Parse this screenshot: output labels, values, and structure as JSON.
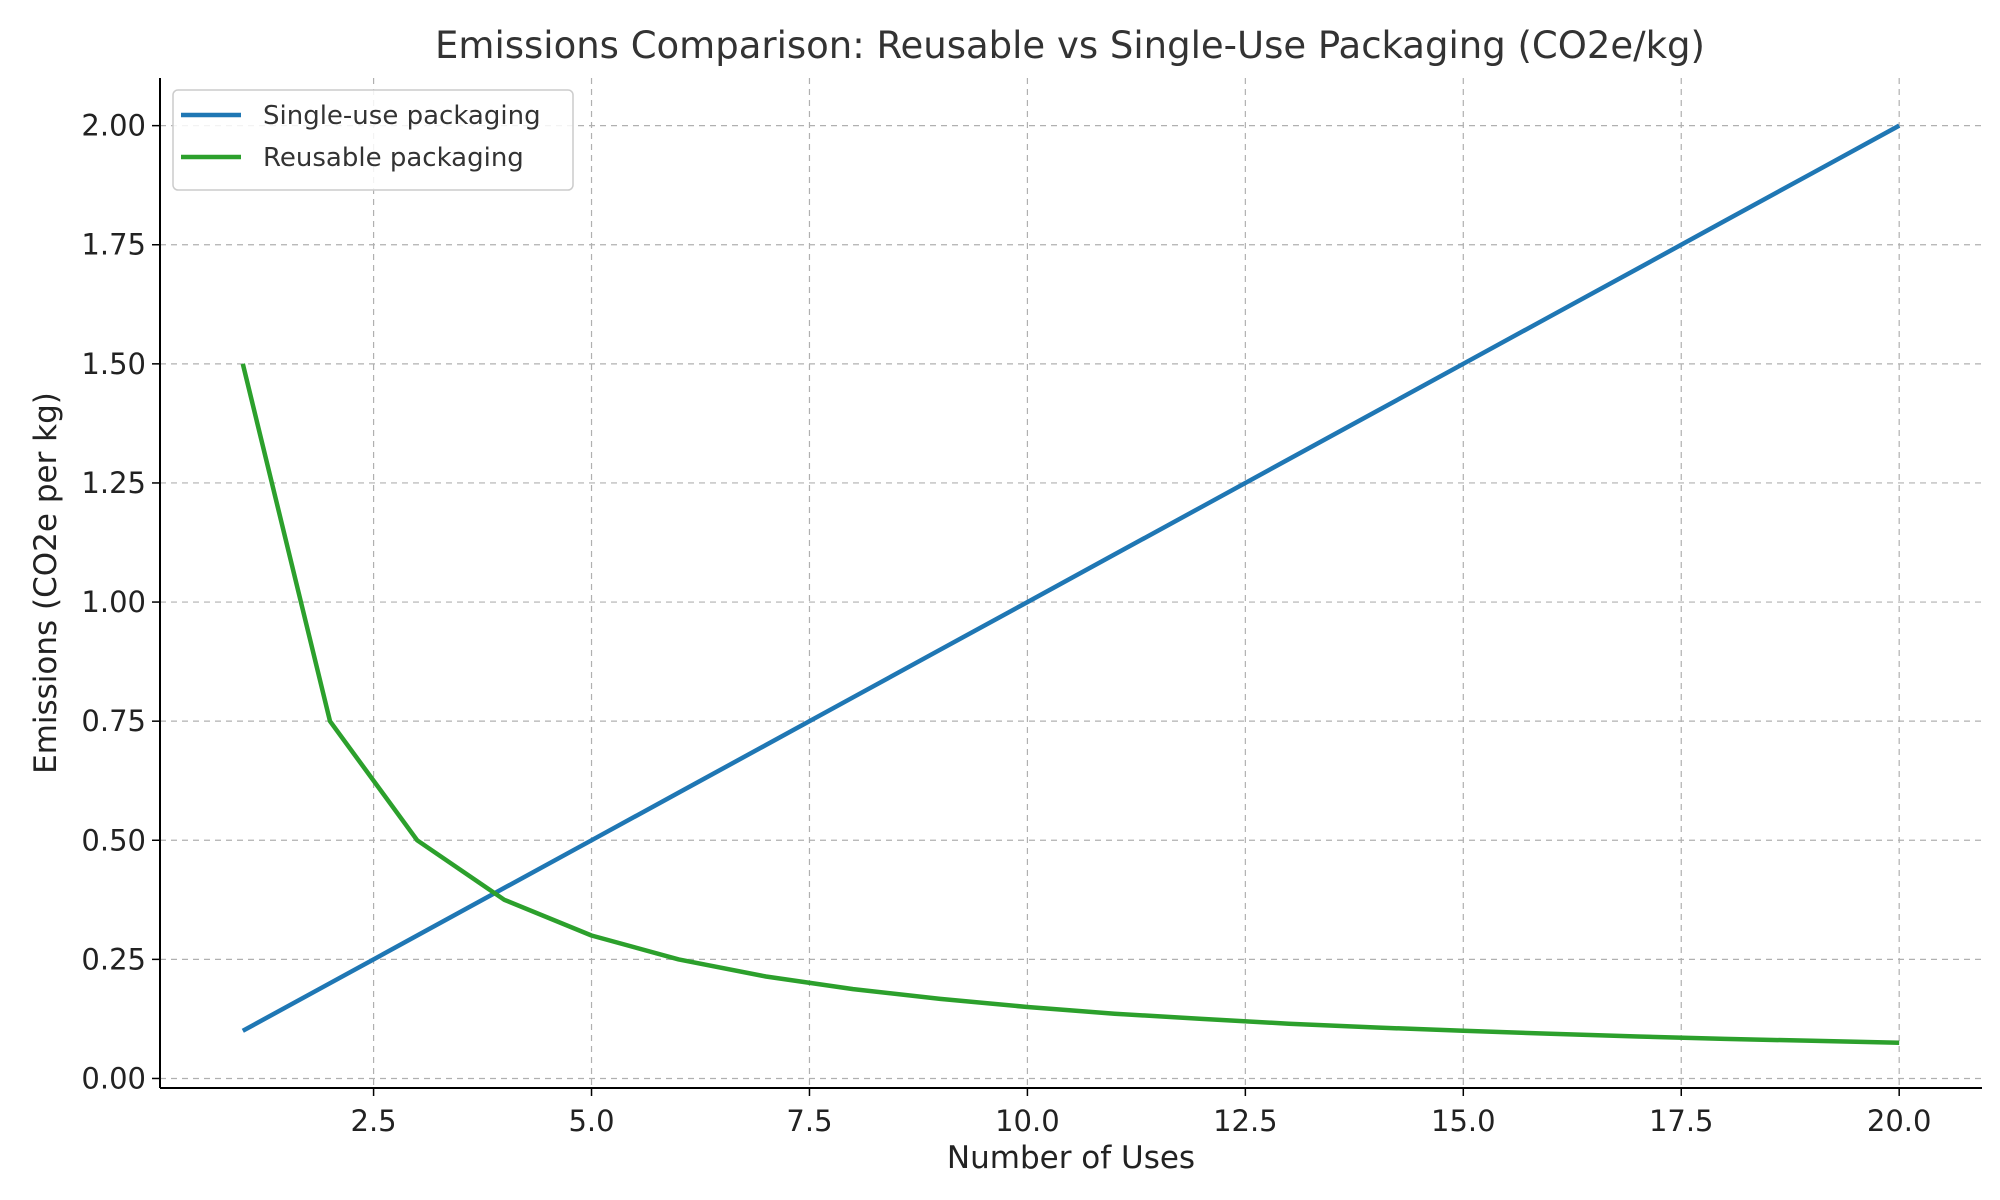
{
  "chart_data": {
    "type": "line",
    "title": "Emissions Comparison: Reusable vs Single-Use Packaging (CO2e/kg)",
    "xlabel": "Number of Uses",
    "ylabel": "Emissions (CO2e per kg)",
    "xlim": [
      0.05,
      20.95
    ],
    "ylim": [
      -0.02,
      2.1
    ],
    "x_ticks": [
      2.5,
      5.0,
      7.5,
      10.0,
      12.5,
      15.0,
      17.5,
      20.0
    ],
    "x_tick_labels": [
      "2.5",
      "5.0",
      "7.5",
      "10.0",
      "12.5",
      "15.0",
      "17.5",
      "20.0"
    ],
    "y_ticks": [
      0.0,
      0.25,
      0.5,
      0.75,
      1.0,
      1.25,
      1.5,
      1.75,
      2.0
    ],
    "y_tick_labels": [
      "0.00",
      "0.25",
      "0.50",
      "0.75",
      "1.00",
      "1.25",
      "1.50",
      "1.75",
      "2.00"
    ],
    "grid": true,
    "legend_position": "top-left",
    "x": [
      1,
      2,
      3,
      4,
      5,
      6,
      7,
      8,
      9,
      10,
      11,
      12,
      13,
      14,
      15,
      16,
      17,
      18,
      19,
      20
    ],
    "series": [
      {
        "name": "Single-use packaging",
        "color": "#1f77b4",
        "values": [
          0.1,
          0.2,
          0.3,
          0.4,
          0.5,
          0.6,
          0.7,
          0.8,
          0.9,
          1.0,
          1.1,
          1.2,
          1.3,
          1.4,
          1.5,
          1.6,
          1.7,
          1.8,
          1.9,
          2.0
        ]
      },
      {
        "name": "Reusable packaging",
        "color": "#2ca02c",
        "values": [
          1.5,
          0.75,
          0.5,
          0.375,
          0.3,
          0.25,
          0.214,
          0.1875,
          0.167,
          0.15,
          0.136,
          0.125,
          0.115,
          0.107,
          0.1,
          0.094,
          0.088,
          0.083,
          0.079,
          0.075
        ]
      }
    ]
  }
}
